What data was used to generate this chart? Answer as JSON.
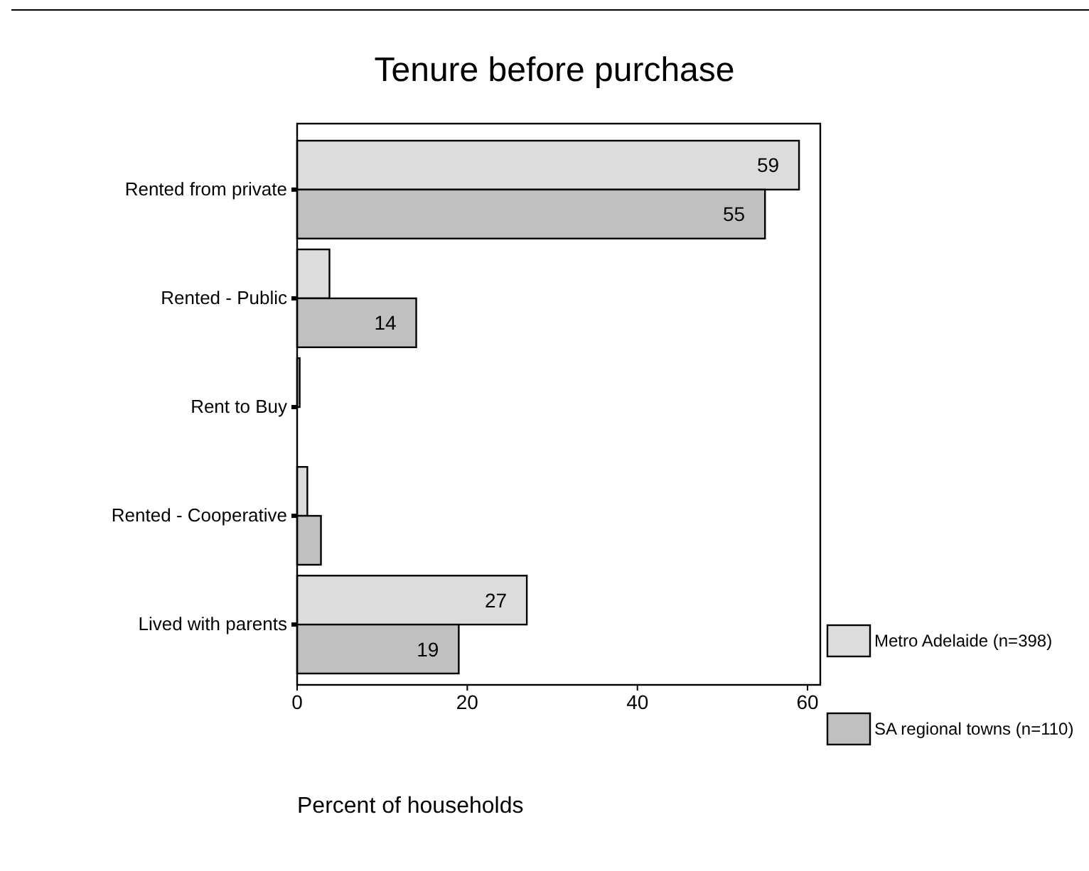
{
  "chart_data": {
    "type": "bar",
    "orientation": "horizontal",
    "title": "Tenure before purchase",
    "xlabel": "Percent of households",
    "categories": [
      "Rented from private",
      "Rented - Public",
      "Rent to Buy",
      "Rented - Cooperative",
      "Lived with parents"
    ],
    "series": [
      {
        "name": "Metro Adelaide (n=398)",
        "color": "#dcdcdc",
        "values": [
          59,
          3.8,
          0.3,
          1.2,
          27
        ],
        "value_labels": [
          "59",
          null,
          null,
          null,
          "27"
        ]
      },
      {
        "name": "SA regional towns (n=110)",
        "color": "#c0c0c0",
        "values": [
          55,
          14,
          null,
          2.8,
          19
        ],
        "value_labels": [
          "55",
          "14",
          null,
          null,
          "19"
        ]
      }
    ],
    "xlim": [
      0,
      61.5
    ],
    "xticks": [
      0,
      20,
      40,
      60
    ],
    "grid": false,
    "legend": "right"
  }
}
